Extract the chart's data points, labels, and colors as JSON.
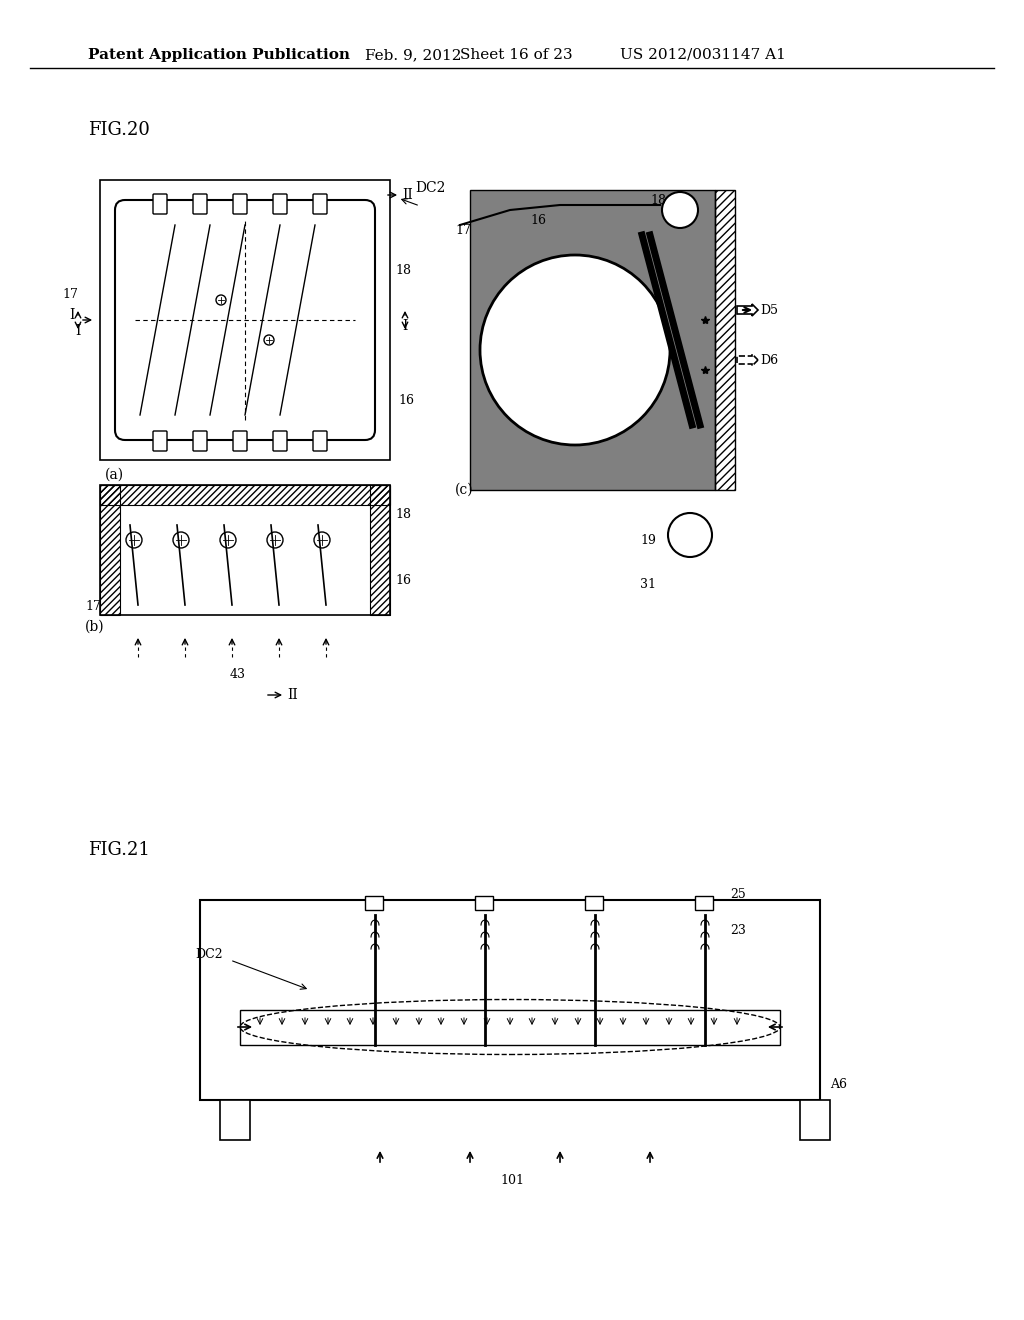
{
  "bg_color": "#ffffff",
  "header_text": "Patent Application Publication",
  "header_date": "Feb. 9, 2012",
  "header_sheet": "Sheet 16 of 23",
  "header_patent": "US 2012/0031147 A1",
  "fig20_label": "FIG.20",
  "fig21_label": "FIG.21"
}
